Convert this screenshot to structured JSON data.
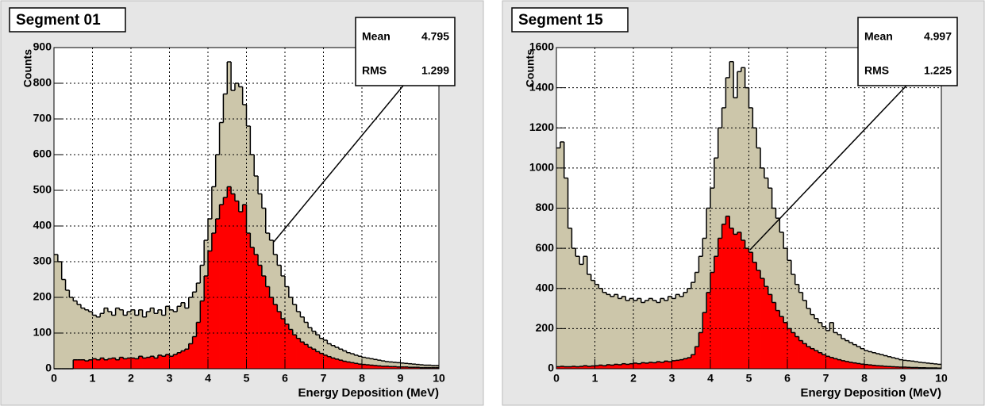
{
  "chart_data": [
    {
      "type": "histogram",
      "title": "Segment 01",
      "x_label": "Energy Deposition (MeV)",
      "y_label": "Counts",
      "stats": [
        {
          "label": "Mean",
          "value": 4.795
        },
        {
          "label": "RMS",
          "value": 1.299
        }
      ],
      "bins": [
        0,
        0.1,
        0.2,
        0.3,
        0.4,
        0.5,
        0.6,
        0.7,
        0.8,
        0.9,
        1,
        1.1,
        1.2,
        1.3,
        1.4,
        1.5,
        1.6,
        1.7,
        1.8,
        1.9,
        2,
        2.1,
        2.2,
        2.3,
        2.4,
        2.5,
        2.6,
        2.7,
        2.8,
        2.9,
        3,
        3.1,
        3.2,
        3.3,
        3.4,
        3.5,
        3.6,
        3.7,
        3.8,
        3.9,
        4,
        4.1,
        4.2,
        4.3,
        4.4,
        4.5,
        4.6,
        4.7,
        4.8,
        4.9,
        5,
        5.1,
        5.2,
        5.3,
        5.4,
        5.5,
        5.6,
        5.7,
        5.8,
        5.9,
        6,
        6.1,
        6.2,
        6.3,
        6.4,
        6.5,
        6.6,
        6.7,
        6.8,
        6.9,
        7,
        7.1,
        7.2,
        7.3,
        7.4,
        7.5,
        7.6,
        7.7,
        7.8,
        7.9,
        8,
        8.1,
        8.2,
        8.3,
        8.4,
        8.5,
        8.6,
        8.7,
        8.8,
        8.9,
        9,
        9.1,
        9.2,
        9.3,
        9.4,
        9.5,
        9.6,
        9.7,
        9.8,
        9.9,
        10
      ],
      "series": [
        {
          "color": "#ccc6aa",
          "values": [
            320,
            300,
            250,
            220,
            200,
            190,
            180,
            170,
            165,
            160,
            150,
            145,
            155,
            170,
            160,
            150,
            170,
            165,
            150,
            160,
            165,
            150,
            165,
            145,
            160,
            170,
            155,
            165,
            150,
            175,
            165,
            160,
            175,
            185,
            170,
            200,
            215,
            240,
            290,
            360,
            420,
            510,
            600,
            690,
            770,
            860,
            780,
            800,
            790,
            740,
            680,
            600,
            540,
            490,
            450,
            380,
            360,
            320,
            290,
            260,
            230,
            200,
            180,
            160,
            145,
            130,
            115,
            105,
            95,
            85,
            80,
            70,
            65,
            60,
            55,
            50,
            45,
            42,
            38,
            35,
            32,
            30,
            28,
            26,
            24,
            22,
            20,
            19,
            18,
            17,
            16,
            15,
            14,
            13,
            12,
            11,
            10,
            10,
            9,
            9
          ]
        },
        {
          "color": "#ff0000",
          "values": [
            0,
            0,
            0,
            0,
            0,
            25,
            25,
            25,
            22,
            25,
            28,
            25,
            30,
            25,
            28,
            30,
            25,
            32,
            28,
            30,
            30,
            28,
            35,
            30,
            32,
            35,
            30,
            38,
            35,
            40,
            35,
            40,
            45,
            50,
            55,
            70,
            90,
            130,
            190,
            260,
            330,
            380,
            420,
            460,
            480,
            510,
            490,
            470,
            440,
            460,
            380,
            340,
            320,
            290,
            260,
            230,
            200,
            180,
            160,
            140,
            125,
            110,
            95,
            85,
            75,
            68,
            60,
            55,
            48,
            43,
            38,
            34,
            30,
            27,
            24,
            21,
            19,
            17,
            15,
            13,
            12,
            11,
            10,
            9,
            8,
            7,
            7,
            6,
            6,
            5,
            5,
            5,
            4,
            4,
            4,
            3,
            3,
            3,
            3,
            3
          ]
        }
      ],
      "xlim": [
        0,
        10
      ],
      "xticks": [
        0,
        1,
        2,
        3,
        4,
        5,
        6,
        7,
        8,
        9,
        10
      ],
      "ylim": [
        0,
        900
      ],
      "yticks": [
        0,
        100,
        200,
        300,
        400,
        500,
        600,
        700,
        800,
        900
      ],
      "grid": true
    },
    {
      "type": "histogram",
      "title": "Segment 15",
      "x_label": "Energy Deposition (MeV)",
      "y_label": "Counts",
      "stats": [
        {
          "label": "Mean",
          "value": 4.997
        },
        {
          "label": "RMS",
          "value": 1.225
        }
      ],
      "bins": [
        0,
        0.1,
        0.2,
        0.3,
        0.4,
        0.5,
        0.6,
        0.7,
        0.8,
        0.9,
        1,
        1.1,
        1.2,
        1.3,
        1.4,
        1.5,
        1.6,
        1.7,
        1.8,
        1.9,
        2,
        2.1,
        2.2,
        2.3,
        2.4,
        2.5,
        2.6,
        2.7,
        2.8,
        2.9,
        3,
        3.1,
        3.2,
        3.3,
        3.4,
        3.5,
        3.6,
        3.7,
        3.8,
        3.9,
        4,
        4.1,
        4.2,
        4.3,
        4.4,
        4.5,
        4.6,
        4.7,
        4.8,
        4.9,
        5,
        5.1,
        5.2,
        5.3,
        5.4,
        5.5,
        5.6,
        5.7,
        5.8,
        5.9,
        6,
        6.1,
        6.2,
        6.3,
        6.4,
        6.5,
        6.6,
        6.7,
        6.8,
        6.9,
        7,
        7.1,
        7.2,
        7.3,
        7.4,
        7.5,
        7.6,
        7.7,
        7.8,
        7.9,
        8,
        8.1,
        8.2,
        8.3,
        8.4,
        8.5,
        8.6,
        8.7,
        8.8,
        8.9,
        9,
        9.1,
        9.2,
        9.3,
        9.4,
        9.5,
        9.6,
        9.7,
        9.8,
        9.9,
        10
      ],
      "series": [
        {
          "color": "#ccc6aa",
          "values": [
            1100,
            1130,
            950,
            700,
            600,
            560,
            520,
            560,
            470,
            440,
            420,
            400,
            380,
            370,
            360,
            370,
            350,
            360,
            340,
            350,
            340,
            350,
            330,
            340,
            350,
            340,
            330,
            350,
            340,
            360,
            350,
            370,
            360,
            380,
            400,
            430,
            480,
            560,
            650,
            800,
            900,
            1050,
            1200,
            1300,
            1450,
            1530,
            1350,
            1480,
            1500,
            1400,
            1300,
            1200,
            1100,
            1000,
            950,
            900,
            800,
            750,
            680,
            600,
            540,
            470,
            420,
            380,
            340,
            300,
            270,
            250,
            230,
            210,
            190,
            230,
            180,
            170,
            150,
            140,
            130,
            120,
            110,
            100,
            90,
            85,
            80,
            75,
            70,
            65,
            60,
            55,
            50,
            45,
            42,
            40,
            38,
            35,
            32,
            30,
            28,
            26,
            24,
            22
          ]
        },
        {
          "color": "#ff0000",
          "values": [
            10,
            12,
            10,
            10,
            12,
            10,
            12,
            15,
            12,
            14,
            15,
            18,
            15,
            20,
            18,
            22,
            20,
            25,
            22,
            25,
            28,
            25,
            30,
            28,
            32,
            30,
            35,
            32,
            38,
            35,
            40,
            42,
            45,
            50,
            55,
            70,
            110,
            180,
            280,
            380,
            480,
            560,
            650,
            720,
            760,
            700,
            670,
            680,
            640,
            600,
            580,
            530,
            490,
            450,
            410,
            370,
            330,
            290,
            260,
            230,
            200,
            180,
            160,
            140,
            125,
            110,
            100,
            90,
            80,
            70,
            62,
            56,
            50,
            45,
            40,
            36,
            32,
            29,
            26,
            23,
            21,
            19,
            17,
            15,
            14,
            12,
            11,
            10,
            9,
            8,
            8,
            7,
            6,
            6,
            5,
            5,
            4,
            4,
            4,
            3
          ]
        }
      ],
      "xlim": [
        0,
        10
      ],
      "xticks": [
        0,
        1,
        2,
        3,
        4,
        5,
        6,
        7,
        8,
        9,
        10
      ],
      "ylim": [
        0,
        1600
      ],
      "yticks": [
        0,
        200,
        400,
        600,
        800,
        1000,
        1200,
        1400,
        1600
      ],
      "grid": true
    }
  ]
}
